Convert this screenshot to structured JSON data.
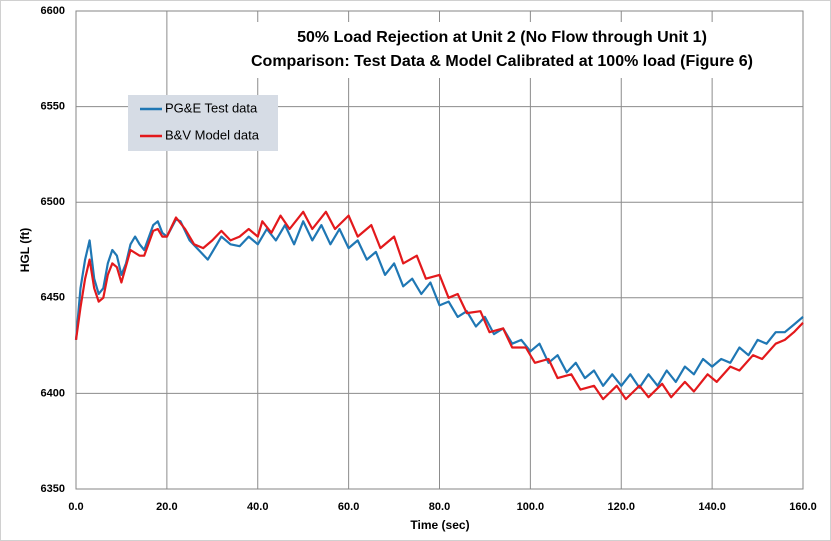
{
  "chart_data": {
    "type": "line",
    "title": "50% Load Rejection at Unit 2 (No Flow through Unit 1)",
    "subtitle": "Comparison: Test Data & Model Calibrated at 100% load (Figure 6)",
    "x_label": "Time (sec)",
    "y_label": "HGL (ft)",
    "xlim": [
      0,
      160
    ],
    "xticks": [
      {
        "value": 0,
        "label": "0.0"
      },
      {
        "value": 20,
        "label": "20.0"
      },
      {
        "value": 40,
        "label": "40.0"
      },
      {
        "value": 60,
        "label": "60.0"
      },
      {
        "value": 80,
        "label": "80.0"
      },
      {
        "value": 100,
        "label": "100.0"
      },
      {
        "value": 120,
        "label": "120.0"
      },
      {
        "value": 140,
        "label": "140.0"
      },
      {
        "value": 160,
        "label": "160.0"
      }
    ],
    "ylim": [
      6350,
      6600
    ],
    "yticks": [
      6350,
      6400,
      6450,
      6500,
      6550,
      6600
    ],
    "grid": true,
    "legend": "upper left",
    "series": [
      {
        "name": "PG&E Test data",
        "color": "#1f77b4",
        "x": [
          0,
          1,
          2,
          3,
          4,
          5,
          6,
          7,
          8,
          9,
          10,
          11,
          12,
          13,
          14,
          15,
          17,
          18,
          19,
          20,
          22,
          23,
          25,
          27,
          29,
          31,
          32,
          34,
          36,
          38,
          40,
          42,
          44,
          46,
          48,
          50,
          52,
          54,
          56,
          58,
          60,
          62,
          64,
          66,
          68,
          70,
          72,
          74,
          76,
          78,
          80,
          82,
          84,
          86,
          88,
          90,
          92,
          94,
          96,
          98,
          100,
          102,
          104,
          106,
          108,
          110,
          112,
          114,
          116,
          118,
          120,
          122,
          124,
          126,
          128,
          130,
          132,
          134,
          136,
          138,
          140,
          142,
          144,
          146,
          148,
          150,
          152,
          154,
          156,
          158,
          160
        ],
        "values": [
          6428,
          6455,
          6470,
          6480,
          6460,
          6452,
          6455,
          6468,
          6475,
          6472,
          6462,
          6468,
          6478,
          6482,
          6478,
          6475,
          6488,
          6490,
          6484,
          6482,
          6491,
          6490,
          6480,
          6475,
          6470,
          6478,
          6482,
          6478,
          6477,
          6482,
          6478,
          6486,
          6480,
          6488,
          6478,
          6490,
          6480,
          6488,
          6478,
          6486,
          6476,
          6480,
          6470,
          6474,
          6462,
          6468,
          6456,
          6460,
          6452,
          6458,
          6446,
          6448,
          6440,
          6443,
          6435,
          6440,
          6431,
          6434,
          6426,
          6428,
          6422,
          6426,
          6416,
          6420,
          6411,
          6416,
          6408,
          6412,
          6404,
          6410,
          6404,
          6410,
          6403,
          6410,
          6404,
          6412,
          6406,
          6414,
          6410,
          6418,
          6414,
          6418,
          6416,
          6424,
          6420,
          6428,
          6426,
          6432,
          6432,
          6436,
          6440
        ]
      },
      {
        "name": "B&V Model data",
        "color": "#e3191c",
        "x": [
          0,
          1,
          2,
          3,
          4,
          5,
          6,
          7,
          8,
          9,
          10,
          12,
          14,
          15,
          17,
          18,
          19,
          20,
          22,
          24,
          26,
          28,
          30,
          32,
          34,
          36,
          38,
          40,
          41,
          43,
          45,
          47,
          50,
          52,
          55,
          57,
          60,
          62,
          65,
          67,
          70,
          72,
          75,
          77,
          80,
          82,
          84,
          86,
          89,
          91,
          94,
          96,
          99,
          101,
          104,
          106,
          109,
          111,
          114,
          116,
          119,
          121,
          124,
          126,
          129,
          131,
          134,
          136,
          139,
          141,
          144,
          146,
          149,
          151,
          154,
          156,
          158,
          160
        ],
        "values": [
          6428,
          6445,
          6460,
          6470,
          6455,
          6448,
          6450,
          6462,
          6468,
          6466,
          6458,
          6475,
          6472,
          6472,
          6485,
          6486,
          6482,
          6482,
          6492,
          6486,
          6478,
          6476,
          6480,
          6485,
          6480,
          6482,
          6486,
          6482,
          6490,
          6484,
          6493,
          6486,
          6495,
          6486,
          6495,
          6486,
          6493,
          6482,
          6488,
          6476,
          6482,
          6468,
          6472,
          6460,
          6462,
          6450,
          6452,
          6442,
          6443,
          6432,
          6434,
          6424,
          6424,
          6416,
          6418,
          6408,
          6410,
          6402,
          6404,
          6397,
          6404,
          6397,
          6404,
          6398,
          6405,
          6398,
          6406,
          6401,
          6410,
          6406,
          6414,
          6412,
          6420,
          6418,
          6426,
          6428,
          6432,
          6437
        ]
      }
    ]
  }
}
